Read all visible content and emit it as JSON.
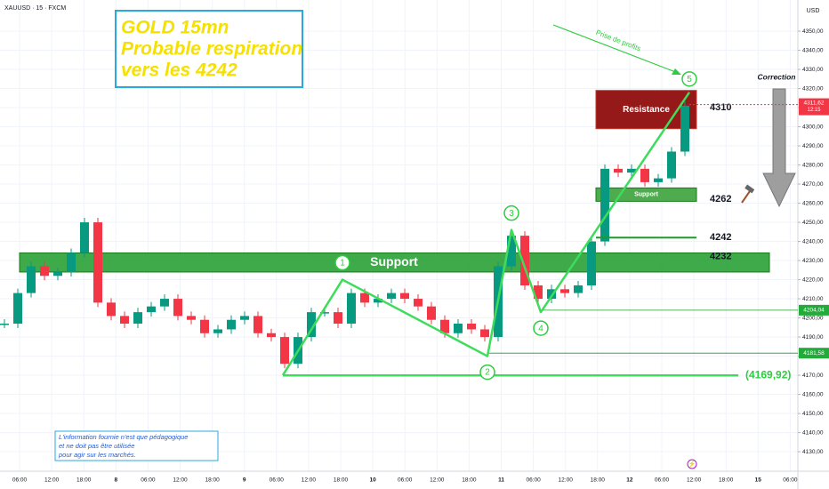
{
  "header": {
    "symbol": "XAUUSD · 15 · FXCM",
    "currency": "USD"
  },
  "title_box": {
    "lines": [
      "GOLD 15mn",
      "Probable respiration",
      "vers les 4242"
    ]
  },
  "price_axis": {
    "ylim": [
      4119.8,
      4366.3
    ],
    "ticks": [
      {
        "value": 4350,
        "label": "4350,00"
      },
      {
        "value": 4340,
        "label": "4340,00"
      },
      {
        "value": 4330,
        "label": "4330,00"
      },
      {
        "value": 4320,
        "label": "4320,00"
      },
      {
        "value": 4310,
        "label": "4310,00"
      },
      {
        "value": 4300,
        "label": "4300,00"
      },
      {
        "value": 4290,
        "label": "4290,00"
      },
      {
        "value": 4280,
        "label": "4280,00"
      },
      {
        "value": 4270,
        "label": "4270,00"
      },
      {
        "value": 4260,
        "label": "4260,00"
      },
      {
        "value": 4250,
        "label": "4250,00"
      },
      {
        "value": 4240,
        "label": "4240,00"
      },
      {
        "value": 4230,
        "label": "4230,00"
      },
      {
        "value": 4220,
        "label": "4220,00"
      },
      {
        "value": 4210,
        "label": "4210,00"
      },
      {
        "value": 4200,
        "label": "4200,00"
      },
      {
        "value": 4190,
        "label": "4190,00"
      },
      {
        "value": 4180,
        "label": "4180,00"
      },
      {
        "value": 4170,
        "label": "4170,00"
      },
      {
        "value": 4160,
        "label": "4160,00"
      },
      {
        "value": 4150,
        "label": "4150,00"
      },
      {
        "value": 4140,
        "label": "4140,00"
      },
      {
        "value": 4130,
        "label": "4130,00"
      }
    ]
  },
  "time_axis": {
    "labels": [
      "06:00",
      "12:00",
      "18:00",
      "8",
      "06:00",
      "12:00",
      "18:00",
      "9",
      "06:00",
      "12:00",
      "18:00",
      "10",
      "06:00",
      "12:00",
      "18:00",
      "11",
      "06:00",
      "12:00",
      "18:00",
      "12",
      "06:00",
      "12:00",
      "18:00",
      "15",
      "06:00"
    ]
  },
  "price_series": {
    "values": [
      4197,
      4213,
      4227,
      4222,
      4224,
      4234,
      4250,
      4208,
      4201,
      4197,
      4203,
      4206,
      4210,
      4201,
      4199,
      4192,
      4194,
      4199,
      4201,
      4192,
      4190,
      4176,
      4190,
      4203,
      4203,
      4197,
      4213,
      4208,
      4210,
      4213,
      4210,
      4206,
      4199,
      4192,
      4197,
      4194,
      4190,
      4227,
      4243,
      4217,
      4210,
      4215,
      4213,
      4217,
      4240,
      4278,
      4276,
      4278,
      4271,
      4273,
      4287,
      4311
    ]
  },
  "waves": {
    "start": 4170,
    "points": [
      {
        "label": "1",
        "price": 4220
      },
      {
        "label": "2",
        "price": 4180
      },
      {
        "label": "3",
        "price": 4246
      },
      {
        "label": "4",
        "price": 4203
      },
      {
        "label": "5",
        "price": 4318
      }
    ]
  },
  "zones": [
    {
      "label": "Support",
      "range": [
        4224,
        4234
      ]
    },
    {
      "label": "Resistance",
      "range": [
        4299,
        4319
      ]
    },
    {
      "label": "Support",
      "range": [
        4261,
        4268
      ]
    }
  ],
  "levels": [
    {
      "label": "4310",
      "price": 4310
    },
    {
      "label": "4262",
      "price": 4262
    },
    {
      "label": "4242",
      "price": 4242
    },
    {
      "label": "4232",
      "price": 4232
    }
  ],
  "price_tags": [
    {
      "label": "4204,04",
      "value": 4204.04
    },
    {
      "label": "4181,58",
      "value": 4181.58
    }
  ],
  "current_price": {
    "label": "4311,62",
    "time": "12:15",
    "value": 4311.62
  },
  "low_line": {
    "label": "(4169,92)",
    "value": 4169.92
  },
  "annotations": {
    "take_profit": "Prise de profits",
    "correction": "Correction"
  },
  "disclaimer": {
    "lines": [
      "L'information fournie n'est que pédagogique",
      "et ne doit pas être utilisée",
      "pour agir sur les marchés."
    ]
  }
}
